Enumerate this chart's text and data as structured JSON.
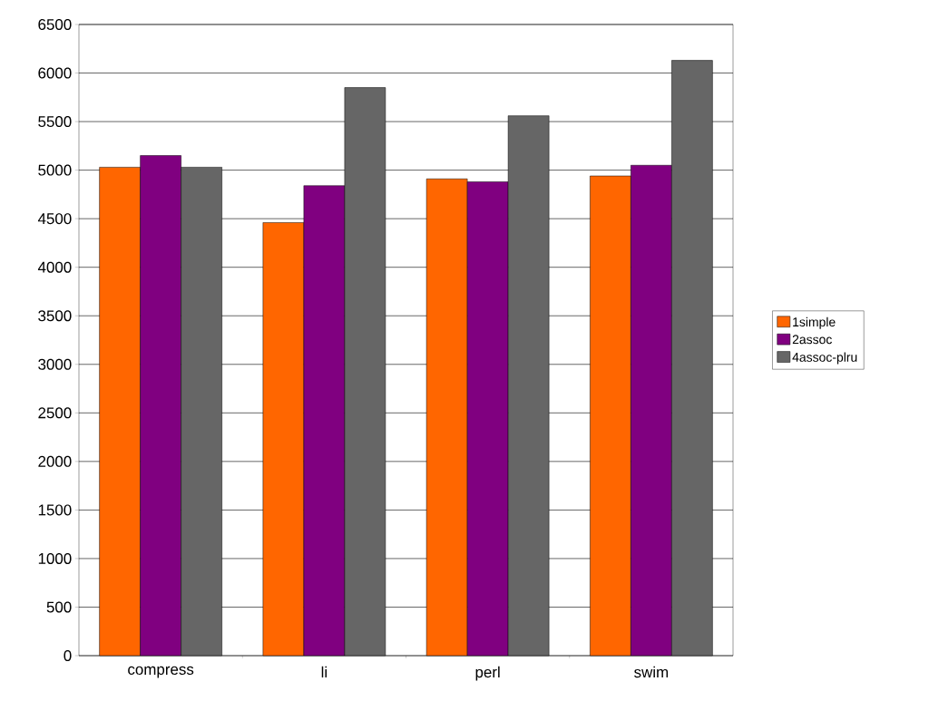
{
  "chart_data": {
    "type": "bar",
    "categories": [
      "compress",
      "li",
      "perl",
      "swim"
    ],
    "series": [
      {
        "name": "1simple",
        "color": "#ff6600",
        "values": [
          5030,
          4460,
          4910,
          4940
        ]
      },
      {
        "name": "2assoc",
        "color": "#800080",
        "values": [
          5150,
          4840,
          4880,
          5050
        ]
      },
      {
        "name": "4assoc-plru",
        "color": "#666666",
        "values": [
          5030,
          5850,
          5560,
          6130
        ]
      }
    ],
    "ylim": [
      0,
      6500
    ],
    "yticks": [
      0,
      500,
      1000,
      1500,
      2000,
      2500,
      3000,
      3500,
      4000,
      4500,
      5000,
      5500,
      6000,
      6500
    ],
    "grid": "y",
    "legend": "right"
  }
}
